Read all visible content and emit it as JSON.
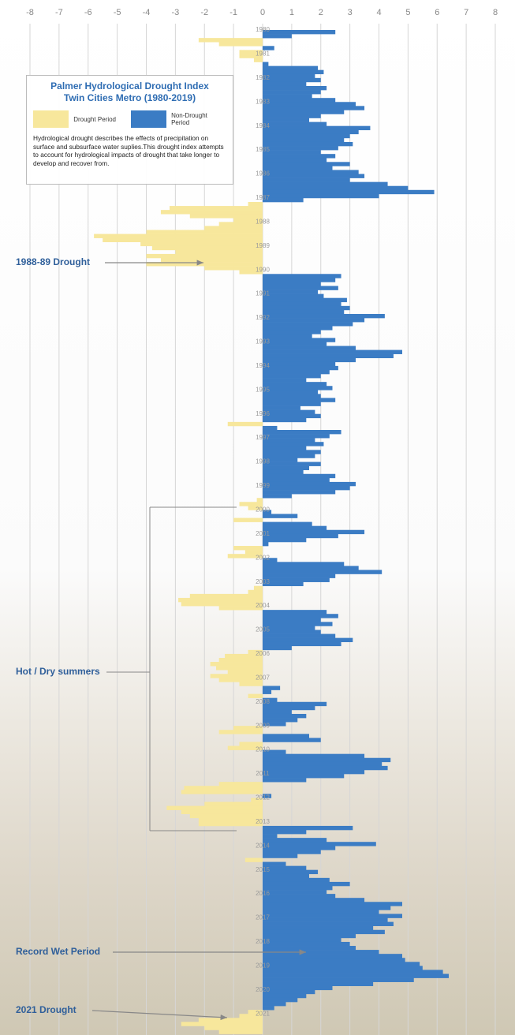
{
  "chart_data": {
    "type": "bar",
    "orientation": "horizontal",
    "title": "Palmer Hydrological Drought Index",
    "subtitle": "Twin Cities Metro (1980-2019)",
    "description": "Hydrological drought describes the effects of precipitation on surface and subsurface water suplies.This drought index attempts to account for hydrological impacts of drought that take longer to develop and recover from.",
    "legend": [
      {
        "name": "Drought Period",
        "color": "#f7e79c"
      },
      {
        "name": "Non-Drought Period",
        "color": "#3b7cc4"
      }
    ],
    "xlim": [
      -8,
      8
    ],
    "xticks": [
      -8,
      -7,
      -6,
      -5,
      -4,
      -3,
      -2,
      -1,
      0,
      1,
      2,
      3,
      4,
      5,
      6,
      7,
      8
    ],
    "grid": true,
    "annotations": [
      "1988-89 Drought",
      "Hot / Dry summers",
      "Record Wet Period",
      "2021 Drought"
    ],
    "categories": [
      "1980",
      null,
      null,
      null,
      null,
      null,
      "1981",
      null,
      null,
      null,
      null,
      null,
      "1982",
      null,
      null,
      null,
      null,
      null,
      "1983",
      null,
      null,
      null,
      null,
      null,
      "1984",
      null,
      null,
      null,
      null,
      null,
      "1985",
      null,
      null,
      null,
      null,
      null,
      "1986",
      null,
      null,
      null,
      null,
      null,
      "1987",
      null,
      null,
      null,
      null,
      null,
      "1988",
      null,
      null,
      null,
      null,
      null,
      "1989",
      null,
      null,
      null,
      null,
      null,
      "1990",
      null,
      null,
      null,
      null,
      null,
      "1991",
      null,
      null,
      null,
      null,
      null,
      "1992",
      null,
      null,
      null,
      null,
      null,
      "1993",
      null,
      null,
      null,
      null,
      null,
      "1994",
      null,
      null,
      null,
      null,
      null,
      "1995",
      null,
      null,
      null,
      null,
      null,
      "1996",
      null,
      null,
      null,
      null,
      null,
      "1997",
      null,
      null,
      null,
      null,
      null,
      "1998",
      null,
      null,
      null,
      null,
      null,
      "1999",
      null,
      null,
      null,
      null,
      null,
      "2000",
      null,
      null,
      null,
      null,
      null,
      "2001",
      null,
      null,
      null,
      null,
      null,
      "2002",
      null,
      null,
      null,
      null,
      null,
      "2003",
      null,
      null,
      null,
      null,
      null,
      "2004",
      null,
      null,
      null,
      null,
      null,
      "2005",
      null,
      null,
      null,
      null,
      null,
      "2006",
      null,
      null,
      null,
      null,
      null,
      "2007",
      null,
      null,
      null,
      null,
      null,
      "2008",
      null,
      null,
      null,
      null,
      null,
      "2009",
      null,
      null,
      null,
      null,
      null,
      "2010",
      null,
      null,
      null,
      null,
      null,
      "2011",
      null,
      null,
      null,
      null,
      null,
      "2012",
      null,
      null,
      null,
      null,
      null,
      "2013",
      null,
      null,
      null,
      null,
      null,
      "2014",
      null,
      null,
      null,
      null,
      null,
      "2015",
      null,
      null,
      null,
      null,
      null,
      "2016",
      null,
      null,
      null,
      null,
      null,
      "2017",
      null,
      null,
      null,
      null,
      null,
      "2018",
      null,
      null,
      null,
      null,
      null,
      "2019",
      null,
      null,
      null,
      null,
      null,
      "2020",
      null,
      null,
      null,
      null,
      null,
      "2021",
      null,
      null,
      null,
      null
    ],
    "values": [
      2.5,
      1.0,
      -2.2,
      -1.5,
      0.4,
      -0.8,
      -0.8,
      -0.3,
      0.2,
      1.9,
      2.1,
      1.8,
      2.0,
      1.5,
      2.2,
      2.0,
      1.7,
      2.5,
      3.2,
      3.5,
      2.8,
      2.0,
      1.6,
      2.2,
      3.7,
      3.3,
      3.0,
      2.8,
      3.1,
      2.6,
      2.0,
      2.5,
      2.2,
      3.0,
      2.4,
      3.3,
      3.5,
      3.0,
      4.3,
      5.0,
      5.9,
      4.0,
      1.4,
      -0.5,
      -3.2,
      -3.5,
      -2.5,
      -1.0,
      -1.5,
      -2.0,
      -4.0,
      -5.8,
      -5.5,
      -4.2,
      -3.8,
      -3.0,
      -4.0,
      -3.5,
      -4.0,
      -2.0,
      -0.8,
      2.7,
      2.5,
      2.0,
      2.6,
      1.9,
      2.1,
      2.9,
      2.7,
      3.0,
      2.8,
      4.2,
      3.5,
      3.1,
      2.4,
      2.0,
      1.7,
      2.5,
      2.2,
      3.2,
      4.8,
      4.5,
      3.2,
      2.5,
      2.6,
      2.3,
      2.0,
      1.5,
      2.2,
      2.4,
      1.9,
      2.0,
      2.5,
      2.0,
      1.3,
      1.8,
      2.0,
      1.5,
      -1.2,
      0.5,
      2.7,
      2.3,
      1.8,
      2.1,
      1.5,
      2.0,
      1.8,
      1.2,
      2.0,
      1.6,
      1.4,
      2.5,
      2.3,
      3.2,
      3.0,
      2.5,
      1.0,
      -0.2,
      -0.8,
      -0.5,
      0.3,
      1.2,
      -1.0,
      1.7,
      2.2,
      3.5,
      2.6,
      1.5,
      0.2,
      -1.0,
      -0.6,
      -1.2,
      0.5,
      2.8,
      3.3,
      4.1,
      2.5,
      2.3,
      1.4,
      -0.3,
      -0.5,
      -2.5,
      -2.9,
      -2.8,
      -1.5,
      2.2,
      2.6,
      2.0,
      2.4,
      1.8,
      2.0,
      2.5,
      3.1,
      2.7,
      1.0,
      -0.5,
      -1.3,
      -1.5,
      -1.8,
      -1.6,
      -1.2,
      -1.8,
      -1.5,
      -0.8,
      0.6,
      0.3,
      -0.5,
      0.5,
      2.2,
      1.8,
      1.0,
      1.5,
      1.2,
      0.8,
      -1.0,
      -1.5,
      1.6,
      2.0,
      -0.8,
      -1.2,
      0.8,
      3.5,
      4.4,
      4.1,
      4.3,
      3.5,
      2.8,
      1.5,
      -1.5,
      -2.7,
      -2.8,
      0.3,
      -0.4,
      -2.0,
      -3.3,
      -2.8,
      -2.5,
      -2.2,
      -2.2,
      3.1,
      1.5,
      0.5,
      2.2,
      3.9,
      2.5,
      2.0,
      1.2,
      -0.6,
      0.8,
      1.5,
      1.9,
      1.6,
      2.3,
      3.0,
      2.4,
      2.2,
      2.5,
      3.5,
      4.8,
      4.4,
      4.0,
      4.8,
      4.3,
      4.5,
      3.8,
      4.2,
      3.2,
      2.7,
      3.0,
      3.2,
      4.0,
      4.8,
      4.9,
      5.4,
      5.5,
      6.2,
      6.4,
      5.2,
      3.8,
      2.4,
      1.8,
      1.5,
      1.2,
      0.8,
      0.4,
      -0.5,
      -0.8,
      -2.2,
      -2.8,
      -2.0,
      -1.5
    ]
  }
}
